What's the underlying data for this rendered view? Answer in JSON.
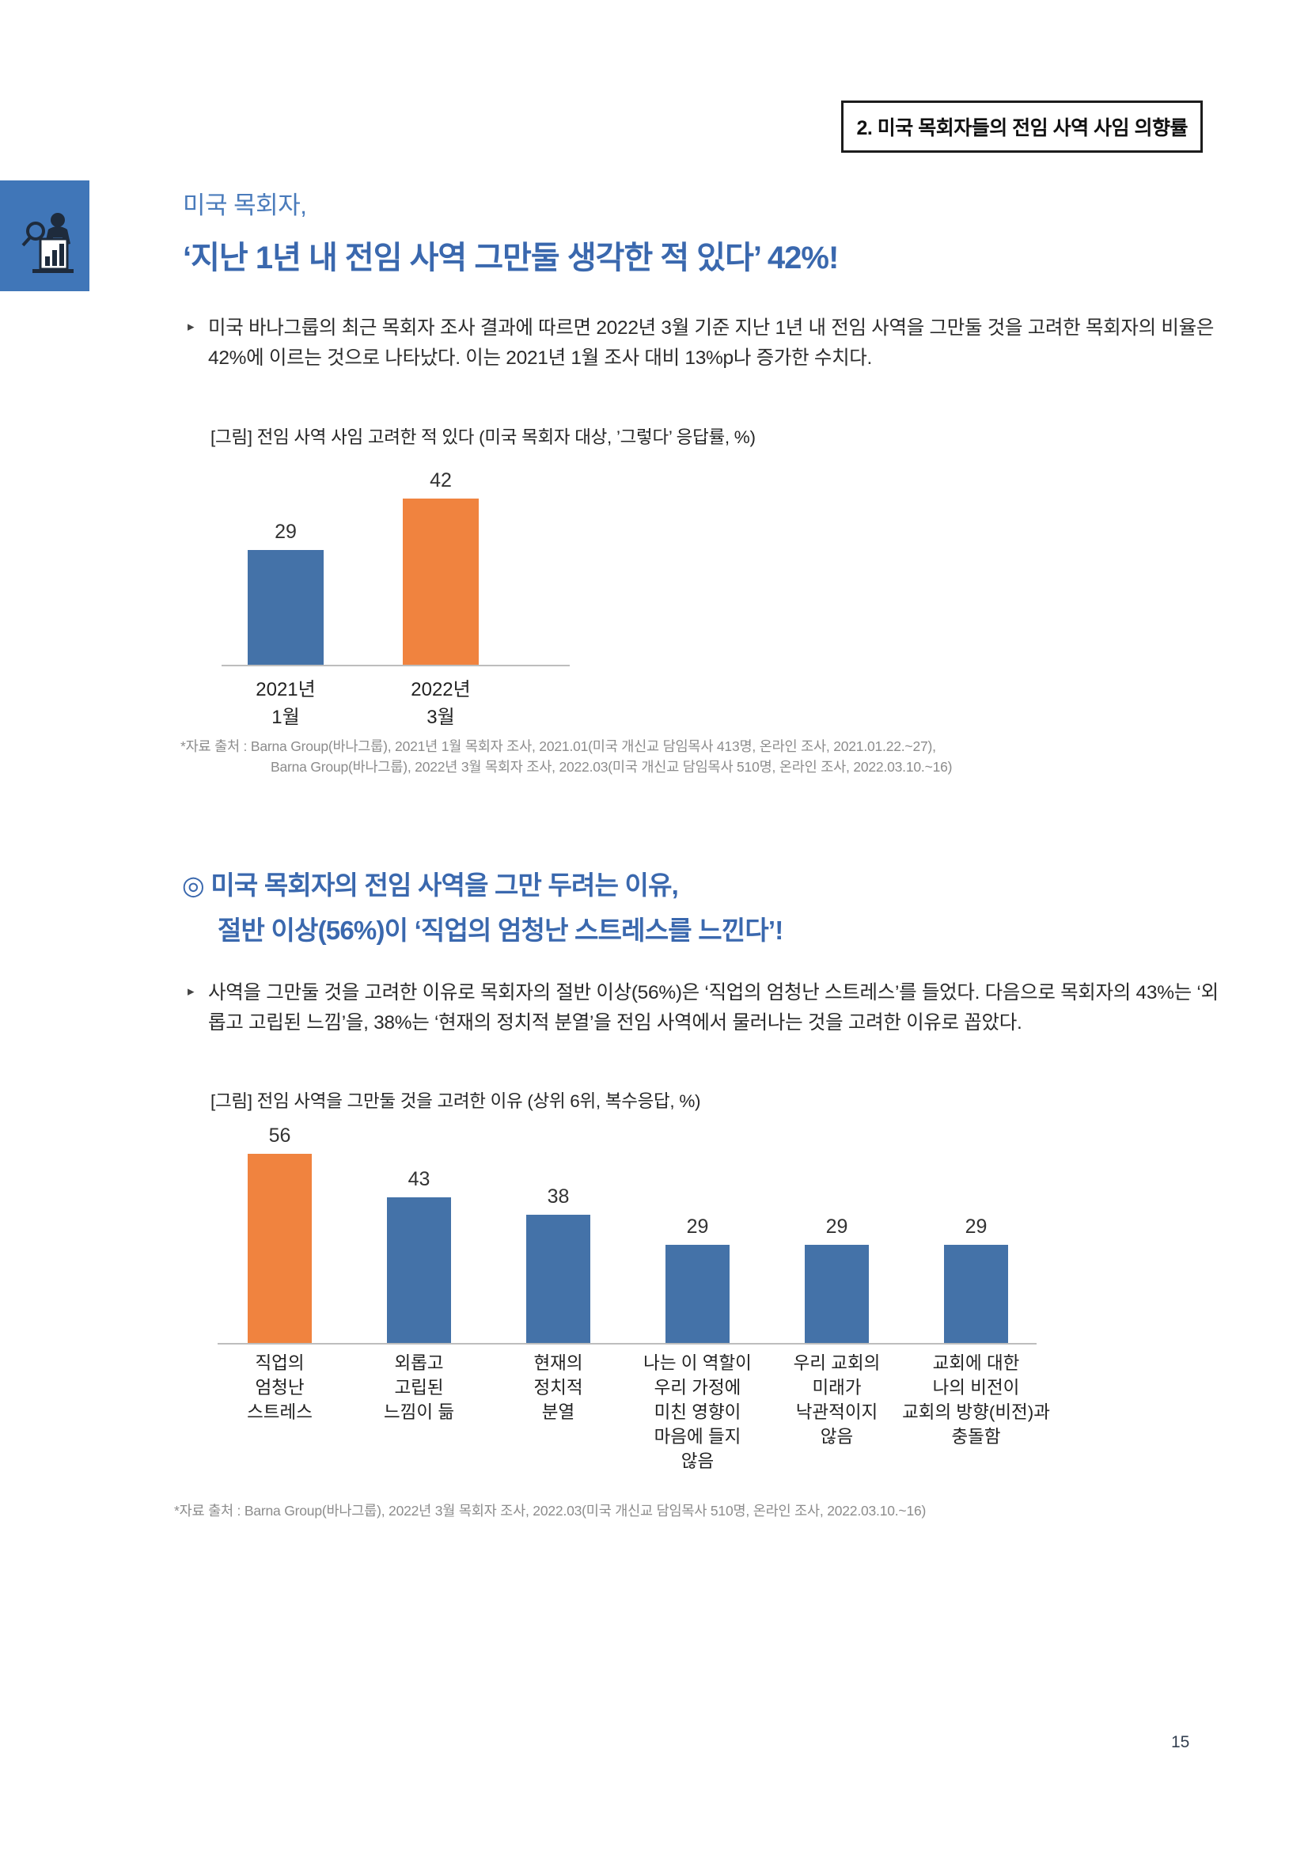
{
  "header": {
    "badge": "2. 미국 목회자들의 전임 사역 사임 의향률"
  },
  "intro": {
    "title_sub": "미국 목회자,",
    "title_main": "‘지난 1년 내 전임 사역 그만둘 생각한 적 있다’ 42%!",
    "bullet": "▸",
    "paragraph": "미국 바나그룹의 최근 목회자 조사 결과에 따르면 2022년 3월 기준 지난 1년 내 전임 사역을 그만둘 것을 고려한 목회자의 비율은 42%에 이르는 것으로 나타났다. 이는 2021년 1월 조사 대비 13%p나 증가한 수치다.",
    "source_line1": "*자료 출처 : Barna Group(바나그룹), 2021년 1월 목회자 조사, 2021.01(미국 개신교 담임목사 413명, 온라인 조사, 2021.01.22.~27),",
    "source_line2": "Barna Group(바나그룹), 2022년 3월 목회자 조사, 2022.03(미국 개신교 담임목사 510명, 온라인 조사, 2022.03.10.~16)"
  },
  "section2": {
    "heading_line1": "◎ 미국 목회자의 전임 사역을 그만 두려는 이유,",
    "heading_line2": "절반 이상(56%)이 ‘직업의 엄청난 스트레스를 느낀다’!",
    "bullet": "▸",
    "paragraph": "사역을 그만둘 것을 고려한 이유로 목회자의 절반 이상(56%)은 ‘직업의 엄청난 스트레스’를 들었다. 다음으로 목회자의 43%는 ‘외롭고 고립된 느낌’을, 38%는 ‘현재의 정치적 분열’을 전임 사역에서 물러나는 것을 고려한 이유로 꼽았다.",
    "source": "*자료 출처 : Barna Group(바나그룹), 2022년 3월 목회자 조사, 2022.03(미국 개신교 담임목사 510명, 온라인 조사, 2022.03.10.~16)"
  },
  "chart_data": [
    {
      "type": "bar",
      "title": "[그림] 전임 사역 사임 고려한 적 있다 (미국 목회자 대상, ’그렇다’ 응답률, %)",
      "categories": [
        "2021년\n1월",
        "2022년\n3월"
      ],
      "values": [
        29,
        42
      ],
      "bar_colors": [
        "#4472A8",
        "#F0833F"
      ],
      "value_labels_shown": true,
      "unit": "%",
      "ylim": [
        0,
        50
      ],
      "grid": false,
      "legend": "none"
    },
    {
      "type": "bar",
      "title": "[그림] 전임 사역을 그만둘 것을 고려한 이유 (상위 6위, 복수응답, %)",
      "categories": [
        "직업의\n엄청난\n스트레스",
        "외롭고\n고립된\n느낌이 듦",
        "현재의\n정치적\n분열",
        "나는 이 역할이\n우리 가정에\n미친 영향이\n마음에 들지\n않음",
        "우리 교회의\n미래가\n낙관적이지\n않음",
        "교회에 대한\n나의 비전이\n교회의 방향(비전)과\n충돌함"
      ],
      "values": [
        56,
        43,
        38,
        29,
        29,
        29
      ],
      "bar_colors": [
        "#F0833F",
        "#4472A8",
        "#4472A8",
        "#4472A8",
        "#4472A8",
        "#4472A8"
      ],
      "value_labels_shown": true,
      "unit": "%",
      "ylim": [
        0,
        60
      ],
      "grid": false,
      "legend": "none"
    }
  ],
  "colors": {
    "accent_blue": "#3A68AE",
    "title_sub_blue": "#4A7BBB",
    "bar_blue": "#4472A8",
    "bar_orange": "#F0833F",
    "icon_bg": "#4076B8",
    "source_gray": "#8C8C8C"
  },
  "page": {
    "number": "15"
  }
}
